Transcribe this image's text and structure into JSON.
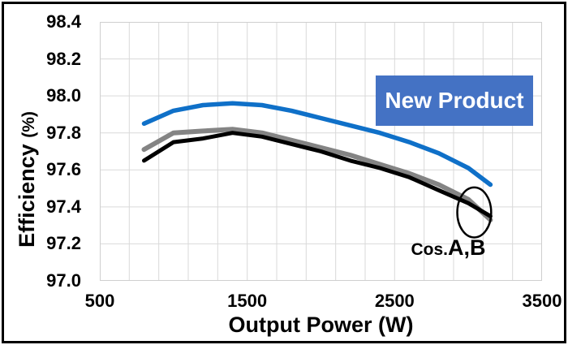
{
  "colors": {
    "new_product_line": "#0F70C8",
    "cos_a_line": "#848484",
    "cos_b_line": "#000000",
    "callout_box": "#4472C4",
    "callout_text": "#FFFFFF",
    "gridline": "#D9D9D9",
    "plot_border": "#CFCFCF",
    "frame": "#000000"
  },
  "chart_data": {
    "type": "line",
    "title": "",
    "xlabel": "Output Power (W)",
    "ylabel": "Efficiency (%)",
    "ylabel_main": "Efficiency",
    "ylabel_unit": "(%)",
    "xlim": [
      500,
      3500
    ],
    "ylim": [
      97.0,
      98.4
    ],
    "x_ticks": [
      "500",
      "1500",
      "2500",
      "3500"
    ],
    "y_ticks": [
      "98.4",
      "98.2",
      "98.0",
      "97.8",
      "97.6",
      "97.4",
      "97.2",
      "97.0"
    ],
    "grid": true,
    "x_gridline_step": 200,
    "y_gridline_step": 0.2,
    "gridline_color": "#D9D9D9",
    "plot_border_color": "#CFCFCF",
    "legend_position": "none",
    "x": [
      800,
      1000,
      1200,
      1400,
      1600,
      1800,
      2000,
      2200,
      2400,
      2600,
      2800,
      3000,
      3150
    ],
    "series": [
      {
        "name": "Cos.A",
        "color": "#848484",
        "width": 6,
        "values": [
          97.71,
          97.8,
          97.81,
          97.82,
          97.8,
          97.76,
          97.72,
          97.68,
          97.63,
          97.58,
          97.52,
          97.44,
          97.33
        ]
      },
      {
        "name": "Cos.B",
        "color": "#000000",
        "width": 5,
        "values": [
          97.65,
          97.75,
          97.77,
          97.8,
          97.78,
          97.74,
          97.7,
          97.65,
          97.61,
          97.56,
          97.49,
          97.42,
          97.35
        ]
      },
      {
        "name": "New Product",
        "color": "#0F70C8",
        "width": 5.5,
        "values": [
          97.85,
          97.92,
          97.95,
          97.96,
          97.95,
          97.92,
          97.88,
          97.84,
          97.8,
          97.75,
          97.69,
          97.61,
          97.52
        ]
      }
    ],
    "annotations": {
      "new_product_label": {
        "text": "New Product",
        "bg": "#4472C4",
        "fg": "#FFFFFF"
      },
      "cos_label": {
        "prefix": "Cos.",
        "models": "A,B"
      },
      "ellipse": {
        "cx": 3040,
        "cy": 97.37,
        "rx": 115,
        "ry": 0.135,
        "stroke": "#000000",
        "stroke_width": 2.5
      }
    }
  }
}
